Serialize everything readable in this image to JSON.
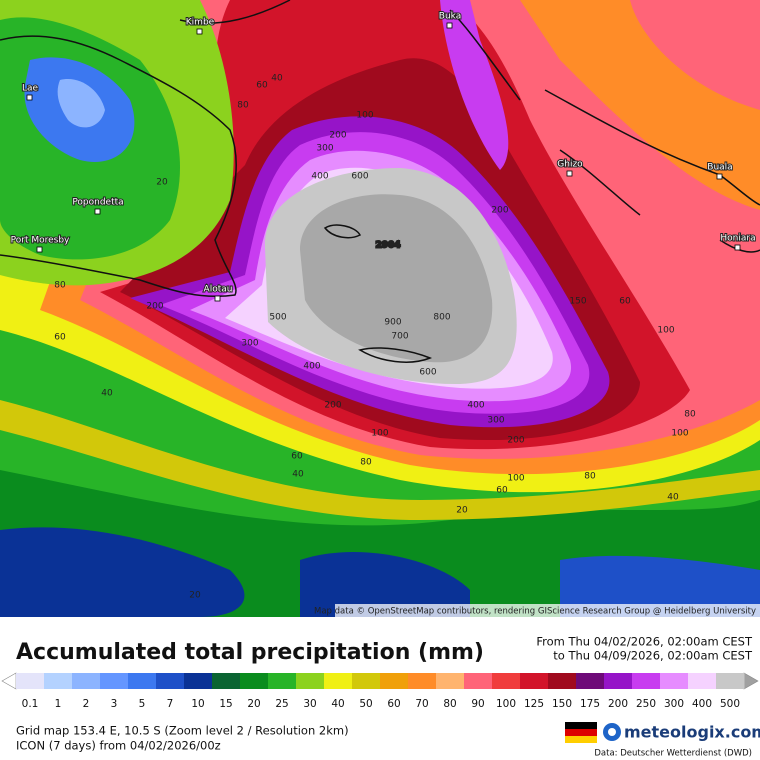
{
  "header": {
    "title": "Accumulated total precipitation (mm)",
    "period_from": "From Thu 04/02/2026, 02:00am CEST",
    "period_to": "to Thu 04/09/2026, 02:00am CEST"
  },
  "legend": {
    "labels": [
      0.1,
      1,
      2,
      3,
      5,
      7,
      10,
      15,
      20,
      25,
      30,
      40,
      50,
      60,
      70,
      80,
      90,
      100,
      125,
      150,
      175,
      200,
      250,
      300,
      400,
      500
    ],
    "colors": [
      "#e4e4fa",
      "#b4d2ff",
      "#8cb4ff",
      "#6496ff",
      "#3c78f0",
      "#1e50c8",
      "#0a3296",
      "#0a6432",
      "#0a8c1e",
      "#28b428",
      "#8cd21e",
      "#f0f014",
      "#d2c80a",
      "#f0a00a",
      "#ff8c28",
      "#ffb46e",
      "#ff6478",
      "#f03c3c",
      "#d2142a",
      "#a00a1e",
      "#6e0a78",
      "#9614c8",
      "#c83cf0",
      "#e68cff",
      "#f5d2ff",
      "#c8c8c8"
    ],
    "low_color": "#ffffff",
    "high_color": "#a0a0a0"
  },
  "map": {
    "places": [
      "Kimbe",
      "Buka",
      "Lae",
      "Popondetta",
      "Port Moresby",
      "Alotau",
      "Ghizo",
      "Buala",
      "Honiara"
    ],
    "contour_labels": [
      2904,
      600,
      400,
      300,
      200,
      100,
      500,
      900,
      800,
      700,
      600,
      400,
      300,
      200,
      400,
      300,
      200,
      100,
      80,
      60,
      40,
      100,
      80,
      60,
      40,
      20,
      100,
      100,
      80,
      60,
      40,
      20,
      200,
      150,
      60,
      80,
      200,
      80,
      60,
      40,
      20
    ],
    "attribution": "Map data © OpenStreetMap contributors, rendering GIScience Research Group @ Heidelberg University"
  },
  "footer": {
    "grid": "Grid map 153.4 E, 10.5 S (Zoom level 2 / Resolution 2km)",
    "model": "ICON (7 days) from 04/02/2026/00z",
    "brand": "meteologix.com",
    "source": "Data: Deutscher Wetterdienst (DWD)"
  }
}
